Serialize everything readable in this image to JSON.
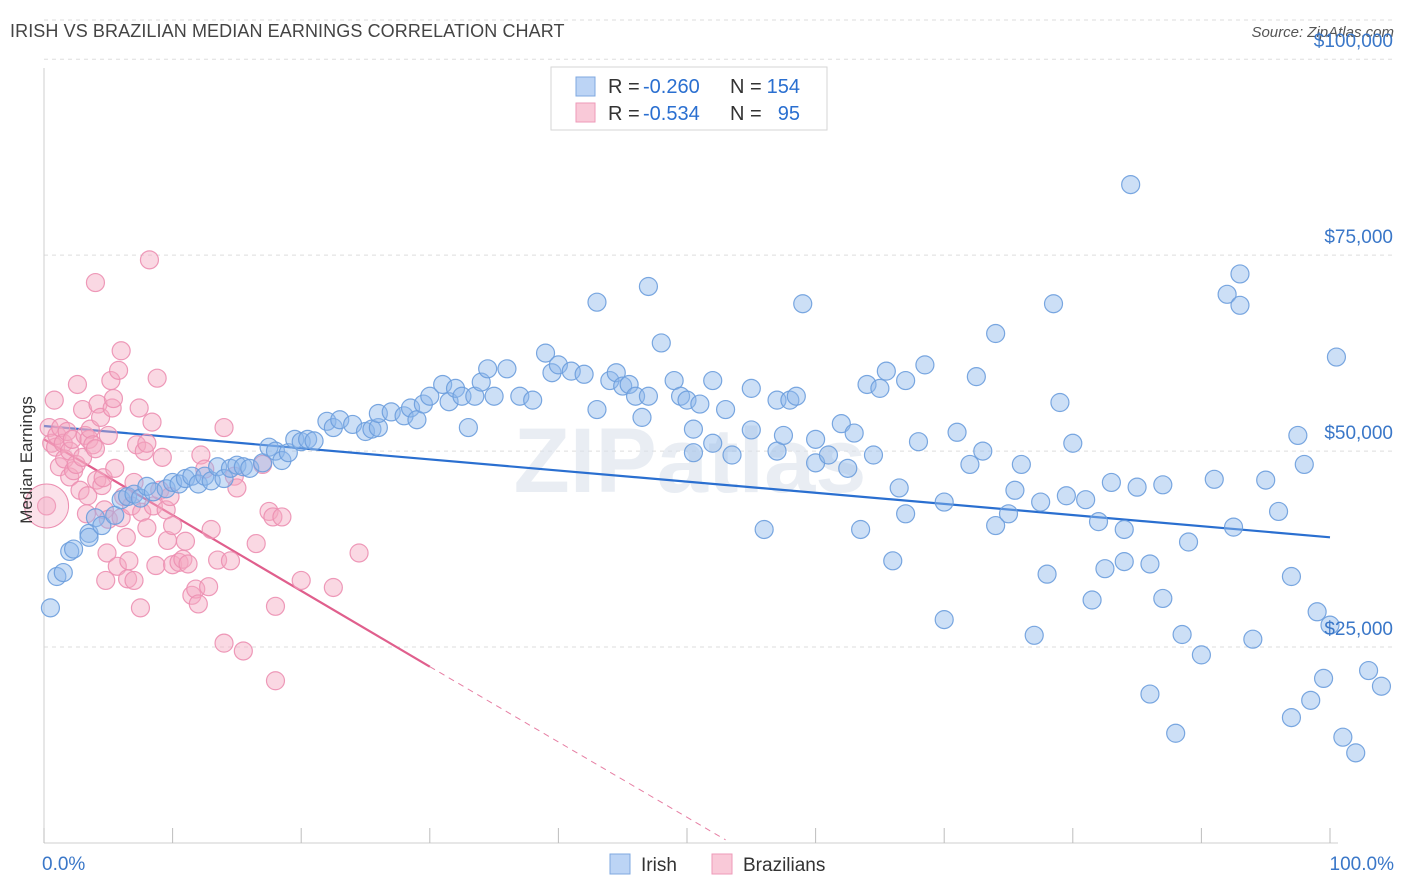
{
  "chart_data": {
    "type": "scatter",
    "title": "IRISH VS BRAZILIAN MEDIAN EARNINGS CORRELATION CHART",
    "source": "Source: ZipAtlas.com",
    "watermark": "ZIPatlas",
    "ylabel": "Median Earnings",
    "xlim": [
      0,
      100
    ],
    "ylim": [
      0,
      105000
    ],
    "x_tick_labels": [
      "0.0%",
      "100.0%"
    ],
    "y_ticks": [
      {
        "value": 25000,
        "label": "$25,000"
      },
      {
        "value": 50000,
        "label": "$50,000"
      },
      {
        "value": 75000,
        "label": "$75,000"
      },
      {
        "value": 100000,
        "label": "$100,000"
      }
    ],
    "legend": [
      {
        "r_label": "R =",
        "r_value": "-0.260",
        "n_label": "N =",
        "n_value": "154"
      },
      {
        "r_label": "R =",
        "r_value": "-0.534",
        "n_label": "N =",
        "n_value": "95"
      }
    ],
    "series": [
      {
        "name": "Irish",
        "color": "#8fb8ec",
        "line_color": "#2a6fd0",
        "trend": {
          "x0": 0,
          "y0": 53200,
          "x1": 100,
          "y1": 39000
        },
        "points": [
          [
            0.5,
            30000
          ],
          [
            1,
            34000
          ],
          [
            1.5,
            34500
          ],
          [
            2,
            37200
          ],
          [
            2.3,
            37500
          ],
          [
            3.5,
            39500
          ],
          [
            3.5,
            39000
          ],
          [
            4,
            41500
          ],
          [
            4.5,
            40500
          ],
          [
            5.5,
            41800
          ],
          [
            6,
            43800
          ],
          [
            6.5,
            44200
          ],
          [
            7,
            44500
          ],
          [
            7.5,
            44000
          ],
          [
            8,
            45500
          ],
          [
            8.5,
            44800
          ],
          [
            9.5,
            45200
          ],
          [
            10,
            46000
          ],
          [
            10.5,
            45800
          ],
          [
            11,
            46500
          ],
          [
            11.5,
            46800
          ],
          [
            12,
            45800
          ],
          [
            12.5,
            46800
          ],
          [
            13,
            46200
          ],
          [
            13.5,
            48000
          ],
          [
            14,
            46500
          ],
          [
            14.5,
            47800
          ],
          [
            15,
            48200
          ],
          [
            15.5,
            48000
          ],
          [
            16,
            47800
          ],
          [
            17,
            48500
          ],
          [
            17.5,
            50500
          ],
          [
            18,
            50000
          ],
          [
            18.5,
            48800
          ],
          [
            19,
            49800
          ],
          [
            19.5,
            51500
          ],
          [
            20,
            51200
          ],
          [
            20.5,
            51500
          ],
          [
            21,
            51300
          ],
          [
            22,
            53800
          ],
          [
            22.5,
            53000
          ],
          [
            23,
            54000
          ],
          [
            24,
            53400
          ],
          [
            25,
            52500
          ],
          [
            25.5,
            52800
          ],
          [
            26,
            53000
          ],
          [
            26,
            54800
          ],
          [
            27,
            55000
          ],
          [
            28,
            54500
          ],
          [
            28.5,
            55500
          ],
          [
            29,
            54000
          ],
          [
            29.5,
            56000
          ],
          [
            30,
            57000
          ],
          [
            31,
            58500
          ],
          [
            31.5,
            56300
          ],
          [
            32,
            58000
          ],
          [
            32.5,
            57000
          ],
          [
            33,
            53000
          ],
          [
            33.5,
            57000
          ],
          [
            34,
            58800
          ],
          [
            34.5,
            60500
          ],
          [
            35,
            57000
          ],
          [
            36,
            60500
          ],
          [
            37,
            57000
          ],
          [
            38,
            56500
          ],
          [
            39,
            62500
          ],
          [
            39.5,
            60000
          ],
          [
            40,
            61000
          ],
          [
            41,
            60200
          ],
          [
            42,
            59800
          ],
          [
            43,
            69000
          ],
          [
            43,
            55300
          ],
          [
            44,
            59000
          ],
          [
            44.5,
            60000
          ],
          [
            45,
            58300
          ],
          [
            45.5,
            58500
          ],
          [
            46,
            57000
          ],
          [
            46.5,
            54300
          ],
          [
            47,
            71000
          ],
          [
            47,
            57000
          ],
          [
            48,
            63800
          ],
          [
            49,
            59000
          ],
          [
            49.5,
            57000
          ],
          [
            50,
            56500
          ],
          [
            50.5,
            52800
          ],
          [
            50.5,
            49800
          ],
          [
            51,
            56000
          ],
          [
            52,
            59000
          ],
          [
            52,
            51000
          ],
          [
            53,
            55300
          ],
          [
            53.5,
            49500
          ],
          [
            55,
            58000
          ],
          [
            55,
            52700
          ],
          [
            56,
            40000
          ],
          [
            57,
            56500
          ],
          [
            57,
            50000
          ],
          [
            57.5,
            52000
          ],
          [
            58,
            56500
          ],
          [
            58.5,
            57000
          ],
          [
            59,
            68800
          ],
          [
            60,
            51500
          ],
          [
            60,
            48500
          ],
          [
            61,
            49500
          ],
          [
            62,
            53500
          ],
          [
            62.5,
            47800
          ],
          [
            63,
            52300
          ],
          [
            63.5,
            40000
          ],
          [
            64,
            58500
          ],
          [
            64.5,
            49500
          ],
          [
            65,
            58000
          ],
          [
            65.5,
            60200
          ],
          [
            66,
            36000
          ],
          [
            66.5,
            45300
          ],
          [
            67,
            59000
          ],
          [
            67,
            42000
          ],
          [
            68,
            51200
          ],
          [
            68.5,
            61000
          ],
          [
            70,
            43500
          ],
          [
            70,
            28500
          ],
          [
            71,
            52400
          ],
          [
            72,
            48300
          ],
          [
            72.5,
            59500
          ],
          [
            73,
            50000
          ],
          [
            74,
            65000
          ],
          [
            74,
            40500
          ],
          [
            75,
            42000
          ],
          [
            75.5,
            45000
          ],
          [
            76,
            48300
          ],
          [
            77,
            26500
          ],
          [
            77.5,
            43500
          ],
          [
            78,
            34300
          ],
          [
            78.5,
            68800
          ],
          [
            79,
            56200
          ],
          [
            79.5,
            44300
          ],
          [
            80,
            51000
          ],
          [
            81,
            43800
          ],
          [
            81.5,
            31000
          ],
          [
            82,
            41000
          ],
          [
            82.5,
            35000
          ],
          [
            83,
            46000
          ],
          [
            84,
            40000
          ],
          [
            84,
            35900
          ],
          [
            84.5,
            84000
          ],
          [
            85,
            45400
          ],
          [
            86,
            19000
          ],
          [
            86,
            35600
          ],
          [
            87,
            45700
          ],
          [
            87,
            31200
          ],
          [
            88,
            14000
          ],
          [
            88.5,
            26600
          ],
          [
            89,
            38400
          ],
          [
            90,
            24000
          ],
          [
            91,
            46400
          ],
          [
            92,
            70000
          ],
          [
            92.5,
            40300
          ],
          [
            93,
            72600
          ],
          [
            93,
            68600
          ],
          [
            94,
            26000
          ],
          [
            95,
            46300
          ],
          [
            96,
            42300
          ],
          [
            97,
            34000
          ],
          [
            97,
            16000
          ],
          [
            97.5,
            52000
          ],
          [
            98,
            48300
          ],
          [
            98.5,
            18200
          ],
          [
            99,
            29500
          ],
          [
            99.5,
            21000
          ],
          [
            100,
            27800
          ],
          [
            100.5,
            62000
          ],
          [
            101,
            13500
          ],
          [
            102,
            11500
          ],
          [
            103,
            22000
          ],
          [
            104,
            20000
          ]
        ]
      },
      {
        "name": "Brazilians",
        "color": "#f4a8c2",
        "line_color": "#e05f8d",
        "trend": {
          "x0": 0,
          "y0": 51500,
          "x1": 30,
          "y1": 22500
        },
        "trend_dashed": {
          "x0": 30,
          "y0": 22500,
          "x1": 53,
          "y1": 400
        },
        "points": [
          [
            0.2,
            43000
          ],
          [
            0.4,
            53000
          ],
          [
            0.6,
            51000
          ],
          [
            0.8,
            56500
          ],
          [
            0.9,
            50500
          ],
          [
            1,
            52000
          ],
          [
            1.2,
            48000
          ],
          [
            1.3,
            53000
          ],
          [
            1.5,
            51000
          ],
          [
            1.6,
            49000
          ],
          [
            1.8,
            52500
          ],
          [
            2,
            46700
          ],
          [
            2,
            50000
          ],
          [
            2.2,
            51500
          ],
          [
            2.3,
            47500
          ],
          [
            2.5,
            48300
          ],
          [
            2.6,
            58500
          ],
          [
            2.8,
            45000
          ],
          [
            3,
            55300
          ],
          [
            3,
            49200
          ],
          [
            3.2,
            52000
          ],
          [
            3.3,
            42000
          ],
          [
            3.4,
            44300
          ],
          [
            3.5,
            51500
          ],
          [
            3.6,
            52800
          ],
          [
            3.8,
            50800
          ],
          [
            4,
            71500
          ],
          [
            4,
            50300
          ],
          [
            4.1,
            46300
          ],
          [
            4.2,
            56000
          ],
          [
            4.4,
            54300
          ],
          [
            4.5,
            45600
          ],
          [
            4.6,
            46600
          ],
          [
            4.7,
            42500
          ],
          [
            4.8,
            33500
          ],
          [
            4.9,
            37000
          ],
          [
            5,
            41300
          ],
          [
            5,
            52000
          ],
          [
            5.2,
            59000
          ],
          [
            5.3,
            55500
          ],
          [
            5.4,
            56700
          ],
          [
            5.5,
            47800
          ],
          [
            5.7,
            35300
          ],
          [
            5.8,
            60300
          ],
          [
            6,
            62800
          ],
          [
            6,
            41500
          ],
          [
            6.2,
            44200
          ],
          [
            6.4,
            39000
          ],
          [
            6.5,
            33700
          ],
          [
            6.6,
            36000
          ],
          [
            6.8,
            43000
          ],
          [
            7,
            46000
          ],
          [
            7,
            33500
          ],
          [
            7.2,
            50800
          ],
          [
            7.4,
            55500
          ],
          [
            7.5,
            30000
          ],
          [
            7.6,
            42200
          ],
          [
            7.8,
            50000
          ],
          [
            8,
            40200
          ],
          [
            8,
            51000
          ],
          [
            8.2,
            74400
          ],
          [
            8.4,
            53700
          ],
          [
            8.5,
            43000
          ],
          [
            8.7,
            35400
          ],
          [
            8.8,
            59300
          ],
          [
            9,
            45000
          ],
          [
            9.2,
            49200
          ],
          [
            9.5,
            42500
          ],
          [
            9.6,
            38600
          ],
          [
            9.8,
            44200
          ],
          [
            10,
            35500
          ],
          [
            10,
            40500
          ],
          [
            10.5,
            35800
          ],
          [
            10.8,
            36200
          ],
          [
            11,
            38500
          ],
          [
            11.2,
            35600
          ],
          [
            11.5,
            31600
          ],
          [
            11.8,
            32400
          ],
          [
            12,
            30500
          ],
          [
            12.2,
            49500
          ],
          [
            12.5,
            47700
          ],
          [
            12.8,
            32700
          ],
          [
            13,
            40000
          ],
          [
            13.5,
            36100
          ],
          [
            14,
            25500
          ],
          [
            14,
            53000
          ],
          [
            14.5,
            36000
          ],
          [
            14.8,
            46800
          ],
          [
            15,
            45300
          ],
          [
            15.5,
            24500
          ],
          [
            16.5,
            38200
          ],
          [
            17,
            48300
          ],
          [
            17.5,
            42300
          ],
          [
            17.8,
            41600
          ],
          [
            18,
            20700
          ],
          [
            18,
            30200
          ],
          [
            18.5,
            41600
          ],
          [
            20,
            33500
          ],
          [
            22.5,
            32600
          ],
          [
            24.5,
            37000
          ]
        ]
      }
    ]
  }
}
